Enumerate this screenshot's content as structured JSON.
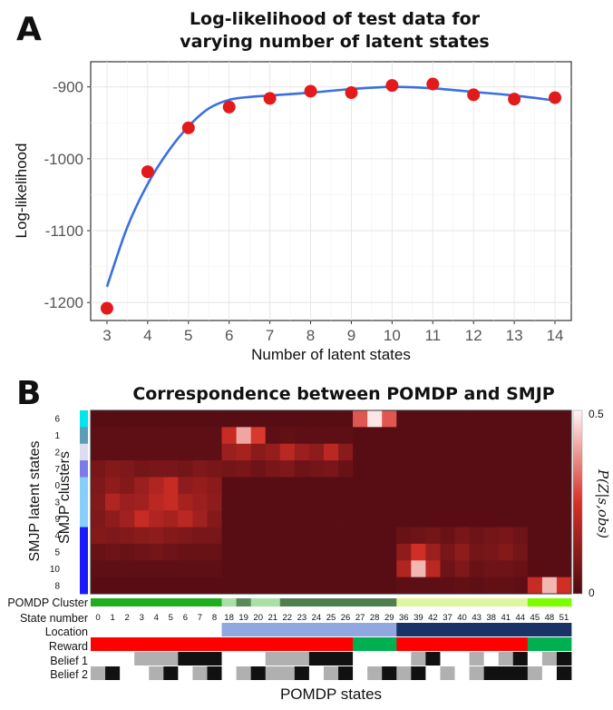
{
  "panel_a_letter": "A",
  "panel_b_letter": "B",
  "chart_data": [
    {
      "type": "scatter",
      "title": "Log-likelihood of test data for varying number of latent states",
      "title_lines": [
        "Log-likelihood of test data for",
        "varying number of latent states"
      ],
      "xlabel": "Number of latent states",
      "ylabel": "Log-likelihood",
      "x": [
        3,
        4,
        5,
        6,
        7,
        8,
        9,
        10,
        11,
        12,
        13,
        14
      ],
      "xlim": [
        2.6,
        14.4
      ],
      "ylim": [
        -1225,
        -865
      ],
      "yticks": [
        -900,
        -1000,
        -1100,
        -1200
      ],
      "grid": true,
      "point_color": "#e31a1c",
      "line_color": "#3b6fe0",
      "series": [
        {
          "values": [
            -1208,
            -1018,
            -957,
            -928,
            -916,
            -906,
            -908,
            -898,
            -896,
            -911,
            -917,
            -915
          ]
        }
      ],
      "smooth_fit": {
        "x": [
          3,
          3.5,
          4,
          4.5,
          5,
          5.5,
          6,
          6.5,
          7,
          8,
          9,
          10,
          11,
          12,
          13,
          14
        ],
        "y": [
          -1178,
          -1095,
          -1035,
          -990,
          -955,
          -930,
          -918,
          -914,
          -912,
          -908,
          -903,
          -900,
          -902,
          -907,
          -912,
          -919
        ]
      }
    },
    {
      "type": "heatmap",
      "title": "Correspondence between POMDP and SMJP",
      "xlabel": "POMDP states",
      "ylabel": "SMJP latent states",
      "ylabel2": "SMJP clusters",
      "rows": [
        "6",
        "1",
        "2",
        "7",
        "0",
        "3",
        "9",
        "4",
        "5",
        "10",
        "8"
      ],
      "columns": [
        "0",
        "1",
        "2",
        "3",
        "4",
        "5",
        "6",
        "7",
        "8",
        "18",
        "19",
        "20",
        "21",
        "22",
        "23",
        "24",
        "25",
        "26",
        "27",
        "28",
        "29",
        "36",
        "39",
        "42",
        "37",
        "40",
        "43",
        "38",
        "41",
        "44",
        "45",
        "48",
        "51"
      ],
      "row_cluster_colors": [
        "#00e5ee",
        "#5a9fb5",
        "#dcdcf5",
        "#7b7bea",
        "#87cefa",
        "#87cefa",
        "#87cefa",
        "#1a1aff",
        "#1a1aff",
        "#1a1aff",
        "#1a1aff"
      ],
      "colorbar": {
        "min": 0,
        "max": 0.5,
        "ticks": [
          "0.5",
          "0"
        ],
        "label": "P(Z|s,obs)"
      },
      "low_color": "#4d0a12",
      "mid_color": "#d73027",
      "high_color": "#fff5f5",
      "values": [
        [
          0.02,
          0.02,
          0.02,
          0.02,
          0.02,
          0.02,
          0.02,
          0.02,
          0.02,
          0.02,
          0.02,
          0.02,
          0.02,
          0.02,
          0.02,
          0.02,
          0.02,
          0.02,
          0.3,
          0.48,
          0.3,
          0.02,
          0.02,
          0.02,
          0.02,
          0.02,
          0.02,
          0.02,
          0.02,
          0.02,
          0.02,
          0.02,
          0.02
        ],
        [
          0.03,
          0.03,
          0.03,
          0.03,
          0.03,
          0.03,
          0.03,
          0.03,
          0.03,
          0.22,
          0.4,
          0.26,
          0.03,
          0.04,
          0.03,
          0.03,
          0.03,
          0.03,
          0.02,
          0.02,
          0.02,
          0.02,
          0.02,
          0.02,
          0.02,
          0.02,
          0.02,
          0.02,
          0.02,
          0.02,
          0.02,
          0.02,
          0.02
        ],
        [
          0.03,
          0.03,
          0.03,
          0.03,
          0.03,
          0.03,
          0.03,
          0.03,
          0.03,
          0.14,
          0.16,
          0.11,
          0.13,
          0.2,
          0.14,
          0.12,
          0.2,
          0.11,
          0.02,
          0.02,
          0.02,
          0.02,
          0.02,
          0.02,
          0.02,
          0.02,
          0.02,
          0.02,
          0.02,
          0.02,
          0.02,
          0.02,
          0.02
        ],
        [
          0.08,
          0.1,
          0.09,
          0.07,
          0.08,
          0.08,
          0.07,
          0.09,
          0.08,
          0.07,
          0.08,
          0.06,
          0.08,
          0.09,
          0.06,
          0.07,
          0.08,
          0.05,
          0.02,
          0.02,
          0.02,
          0.02,
          0.02,
          0.02,
          0.02,
          0.02,
          0.02,
          0.02,
          0.02,
          0.02,
          0.02,
          0.02,
          0.02
        ],
        [
          0.09,
          0.12,
          0.1,
          0.14,
          0.18,
          0.22,
          0.12,
          0.13,
          0.11,
          0.02,
          0.02,
          0.02,
          0.02,
          0.02,
          0.02,
          0.02,
          0.02,
          0.02,
          0.02,
          0.02,
          0.02,
          0.02,
          0.02,
          0.02,
          0.02,
          0.02,
          0.02,
          0.02,
          0.02,
          0.02,
          0.02,
          0.02,
          0.02
        ],
        [
          0.1,
          0.18,
          0.14,
          0.15,
          0.2,
          0.22,
          0.16,
          0.14,
          0.12,
          0.02,
          0.02,
          0.02,
          0.02,
          0.02,
          0.02,
          0.02,
          0.02,
          0.02,
          0.02,
          0.02,
          0.02,
          0.02,
          0.02,
          0.02,
          0.02,
          0.02,
          0.02,
          0.02,
          0.02,
          0.02,
          0.02,
          0.02,
          0.02
        ],
        [
          0.09,
          0.12,
          0.15,
          0.22,
          0.18,
          0.16,
          0.2,
          0.15,
          0.1,
          0.02,
          0.02,
          0.02,
          0.02,
          0.02,
          0.02,
          0.02,
          0.02,
          0.02,
          0.02,
          0.02,
          0.02,
          0.02,
          0.02,
          0.02,
          0.02,
          0.02,
          0.02,
          0.02,
          0.02,
          0.02,
          0.02,
          0.02,
          0.02
        ],
        [
          0.1,
          0.09,
          0.1,
          0.11,
          0.12,
          0.1,
          0.09,
          0.08,
          0.08,
          0.02,
          0.02,
          0.02,
          0.02,
          0.02,
          0.02,
          0.02,
          0.02,
          0.02,
          0.02,
          0.02,
          0.02,
          0.05,
          0.06,
          0.07,
          0.05,
          0.08,
          0.06,
          0.07,
          0.08,
          0.06,
          0.02,
          0.02,
          0.02
        ],
        [
          0.05,
          0.06,
          0.05,
          0.06,
          0.07,
          0.06,
          0.05,
          0.05,
          0.05,
          0.02,
          0.02,
          0.02,
          0.02,
          0.02,
          0.02,
          0.02,
          0.02,
          0.02,
          0.02,
          0.02,
          0.02,
          0.12,
          0.24,
          0.14,
          0.08,
          0.12,
          0.07,
          0.08,
          0.1,
          0.07,
          0.02,
          0.02,
          0.02
        ],
        [
          0.03,
          0.03,
          0.03,
          0.03,
          0.03,
          0.03,
          0.03,
          0.03,
          0.03,
          0.02,
          0.02,
          0.02,
          0.02,
          0.02,
          0.02,
          0.02,
          0.02,
          0.02,
          0.02,
          0.02,
          0.02,
          0.18,
          0.42,
          0.2,
          0.06,
          0.09,
          0.05,
          0.06,
          0.06,
          0.05,
          0.02,
          0.02,
          0.02
        ],
        [
          0.02,
          0.02,
          0.02,
          0.02,
          0.02,
          0.02,
          0.02,
          0.02,
          0.02,
          0.02,
          0.02,
          0.02,
          0.02,
          0.02,
          0.02,
          0.02,
          0.02,
          0.02,
          0.02,
          0.02,
          0.02,
          0.03,
          0.03,
          0.03,
          0.03,
          0.04,
          0.03,
          0.04,
          0.04,
          0.03,
          0.22,
          0.42,
          0.24
        ]
      ]
    }
  ],
  "annotations": {
    "labels": [
      "POMDP Cluster",
      "State number",
      "Location",
      "Reward",
      "Belief 1",
      "Belief 2"
    ],
    "pomdp_cluster_colors": [
      "#1fae1f",
      "#1fae1f",
      "#1fae1f",
      "#1fae1f",
      "#1fae1f",
      "#1fae1f",
      "#1fae1f",
      "#1fae1f",
      "#1fae1f",
      "#a8e0a8",
      "#5a8a5a",
      "#a8e0a8",
      "#a8e0a8",
      "#4f7f4f",
      "#4f7f4f",
      "#4f7f4f",
      "#4f7f4f",
      "#4f7f4f",
      "#4f7f4f",
      "#4f7f4f",
      "#4f7f4f",
      "#e0f5a0",
      "#e0f5a0",
      "#e0f5a0",
      "#e0f5a0",
      "#e0f5a0",
      "#e0f5a0",
      "#e0f5a0",
      "#e0f5a0",
      "#e0f5a0",
      "#7cfc00",
      "#7cfc00",
      "#7cfc00"
    ],
    "location_colors": [
      "#ffffff",
      "#ffffff",
      "#ffffff",
      "#ffffff",
      "#ffffff",
      "#ffffff",
      "#ffffff",
      "#ffffff",
      "#ffffff",
      "#8fa8e0",
      "#8fa8e0",
      "#8fa8e0",
      "#8fa8e0",
      "#8fa8e0",
      "#8fa8e0",
      "#8fa8e0",
      "#8fa8e0",
      "#8fa8e0",
      "#8fa8e0",
      "#8fa8e0",
      "#8fa8e0",
      "#1a3366",
      "#1a3366",
      "#1a3366",
      "#1a3366",
      "#1a3366",
      "#1a3366",
      "#1a3366",
      "#1a3366",
      "#1a3366",
      "#1a3366",
      "#1a3366",
      "#1a3366"
    ],
    "reward_colors": [
      "#ff0000",
      "#ff0000",
      "#ff0000",
      "#ff0000",
      "#ff0000",
      "#ff0000",
      "#ff0000",
      "#ff0000",
      "#ff0000",
      "#ff0000",
      "#ff0000",
      "#ff0000",
      "#ff0000",
      "#ff0000",
      "#ff0000",
      "#ff0000",
      "#ff0000",
      "#ff0000",
      "#00b050",
      "#00b050",
      "#00b050",
      "#ff0000",
      "#ff0000",
      "#ff0000",
      "#ff0000",
      "#ff0000",
      "#ff0000",
      "#ff0000",
      "#ff0000",
      "#ff0000",
      "#00b050",
      "#00b050",
      "#00b050"
    ],
    "belief1_colors": [
      "#ffffff",
      "#ffffff",
      "#ffffff",
      "#b0b0b0",
      "#b0b0b0",
      "#b0b0b0",
      "#111111",
      "#111111",
      "#111111",
      "#ffffff",
      "#ffffff",
      "#ffffff",
      "#b0b0b0",
      "#b0b0b0",
      "#b0b0b0",
      "#111111",
      "#111111",
      "#111111",
      "#ffffff",
      "#ffffff",
      "#ffffff",
      "#ffffff",
      "#b0b0b0",
      "#111111",
      "#ffffff",
      "#ffffff",
      "#b0b0b0",
      "#ffffff",
      "#b0b0b0",
      "#111111",
      "#ffffff",
      "#b0b0b0",
      "#111111"
    ],
    "belief2_colors": [
      "#b0b0b0",
      "#111111",
      "#ffffff",
      "#ffffff",
      "#b0b0b0",
      "#111111",
      "#ffffff",
      "#b0b0b0",
      "#111111",
      "#ffffff",
      "#b0b0b0",
      "#111111",
      "#b0b0b0",
      "#b0b0b0",
      "#111111",
      "#ffffff",
      "#b0b0b0",
      "#111111",
      "#ffffff",
      "#b0b0b0",
      "#111111",
      "#b0b0b0",
      "#111111",
      "#ffffff",
      "#b0b0b0",
      "#ffffff",
      "#b0b0b0",
      "#111111",
      "#111111",
      "#111111",
      "#b0b0b0",
      "#ffffff",
      "#111111"
    ]
  }
}
